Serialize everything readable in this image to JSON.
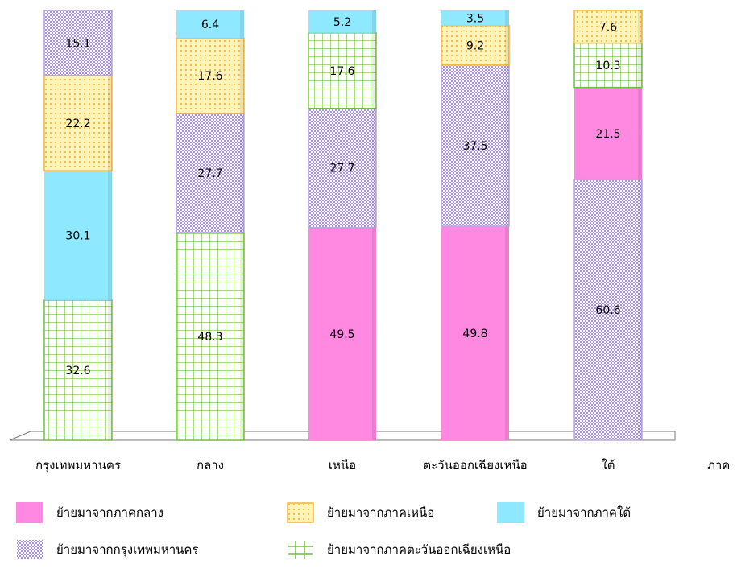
{
  "chart_data": {
    "type": "bar",
    "stacked": true,
    "percent_stacked": true,
    "xlabel": "ภาค",
    "ylabel": "",
    "title": "",
    "ylim": [
      0,
      100
    ],
    "categories": [
      "กรุงเทพมหานคร",
      "กลาง",
      "เหนือ",
      "ตะวันออกเฉียงเหนือ",
      "ใต้"
    ],
    "series": [
      {
        "name": "ย้ายมาจากภาคกลาง",
        "color": "#ff88e1",
        "pattern": "solid",
        "values": [
          null,
          null,
          49.5,
          49.8,
          21.5
        ]
      },
      {
        "name": "ย้ายมาจากภาคเหนือ",
        "color": "#ffe680",
        "pattern": "dots",
        "values": [
          22.2,
          17.6,
          null,
          9.2,
          7.6
        ]
      },
      {
        "name": "ย้ายมาจากภาคใต้",
        "color": "#8ee8ff",
        "pattern": "solid",
        "values": [
          30.1,
          6.4,
          5.2,
          3.5,
          null
        ]
      },
      {
        "name": "ย้ายมาจากกรุงเทพมหานคร",
        "color": "#c9b8f0",
        "pattern": "vlines",
        "values": [
          15.1,
          27.7,
          27.7,
          37.5,
          60.6
        ]
      },
      {
        "name": "ย้ายมาจากภาคตะวันออกเฉียงเหนือ",
        "color": "#80cc60",
        "pattern": "grid",
        "values": [
          32.6,
          48.3,
          17.6,
          null,
          10.3
        ]
      }
    ],
    "stack_order_bottom_to_top": [
      [
        "ย้ายมาจากภาคตะวันออกเฉียงเหนือ",
        "ย้ายมาจากภาคใต้",
        "ย้ายมาจากภาคเหนือ",
        "ย้ายมาจากกรุงเทพมหานคร"
      ],
      [
        "ย้ายมาจากภาคตะวันออกเฉียงเหนือ",
        "ย้ายมาจากกรุงเทพมหานคร",
        "ย้ายมาจากภาคเหนือ",
        "ย้ายมาจากภาคใต้"
      ],
      [
        "ย้ายมาจากภาคกลาง",
        "ย้ายมาจากกรุงเทพมหานคร",
        "ย้ายมาจากภาคตะวันออกเฉียงเหนือ",
        "ย้ายมาจากภาคใต้"
      ],
      [
        "ย้ายมาจากภาคกลาง",
        "ย้ายมาจากกรุงเทพมหานคร",
        "ย้ายมาจากภาคเหนือ",
        "ย้ายมาจากภาคใต้"
      ],
      [
        "ย้ายมาจากกรุงเทพมหานคร",
        "ย้ายมาจากภาคกลาง",
        "ย้ายมาจากภาคตะวันออกเฉียงเหนือ",
        "ย้ายมาจากภาคเหนือ"
      ]
    ],
    "segment_colors": {
      "ย้ายมาจากภาคกลาง": "#ff88e1",
      "ย้ายมาจากภาคเหนือ": "#ffe680",
      "ย้ายมาจากภาคใต้": "#8ee8ff",
      "ย้ายมาจากกรุงเทพมหานคร": "#c9b8f0",
      "ย้ายมาจากภาคตะวันออกเฉียงเหนือ": "#80cc60"
    },
    "grid": false,
    "legend_position": "bottom"
  },
  "legend": {
    "items": [
      {
        "label": "ย้ายมาจากภาคกลาง",
        "key": "central"
      },
      {
        "label": "ย้ายมาจากภาคเหนือ",
        "key": "north"
      },
      {
        "label": "ย้ายมาจากภาคใต้",
        "key": "south"
      },
      {
        "label": "ย้ายมาจากกรุงเทพมหานคร",
        "key": "bangkok"
      },
      {
        "label": "ย้ายมาจากภาคตะวันออกเฉียงเหนือ",
        "key": "northeast"
      }
    ]
  }
}
